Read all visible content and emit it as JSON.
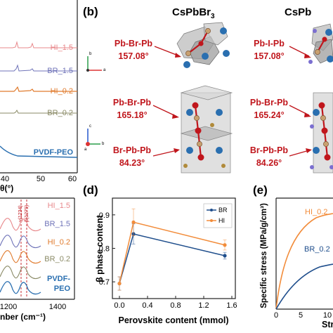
{
  "panel_labels": {
    "b": "(b)",
    "d": "(d)",
    "e": "(e)"
  },
  "panel_a": {
    "traces": [
      "HI_1.5",
      "BR_1.5",
      "HI_0.2",
      "BR_0.2",
      "PVDF-PEO"
    ],
    "trace_colors": [
      "#e8888b",
      "#6f73b8",
      "#e07a2c",
      "#8a8a66",
      "#2a6fb0"
    ],
    "x_ticks": [
      "40",
      "50",
      "60"
    ],
    "x_label_fragment": "θ(°)"
  },
  "panel_b": {
    "col_titles": [
      "CsPbBr",
      "CsPb"
    ],
    "title_subscript": "3",
    "axes_top": {
      "b": "b",
      "a": "a"
    },
    "axes_bottom": {
      "c": "c",
      "b": "b",
      "a": "a"
    },
    "annotations_left": [
      {
        "name": "Pb-Br-Pb",
        "value": "157.08°"
      },
      {
        "name": "Pb-Br-Pb",
        "value": "165.18°"
      },
      {
        "name": "Br-Pb-Pb",
        "value": "84.23°"
      }
    ],
    "annotations_right": [
      {
        "name": "Pb-I-Pb",
        "value": "157.08°"
      },
      {
        "name": "Pb-Br-Pb",
        "value": "165.24°"
      },
      {
        "name": "Br-Pb-Pb",
        "value": "84.26°"
      }
    ]
  },
  "panel_c": {
    "traces": [
      "HI_1.5",
      "BR_1.5",
      "HI_0.2",
      "BR_0.2",
      "PVDF-\nPEO"
    ],
    "trace_labels": [
      "HI_1.5",
      "BR_1.5",
      "HI_0.2",
      "BR_0.2"
    ],
    "last_label_line1": "PVDF-",
    "last_label_line2": "PEO",
    "trace_colors": [
      "#e8888b",
      "#6f73b8",
      "#e07a2c",
      "#8a8a66",
      "#2a6fb0"
    ],
    "peak_labels": [
      "γ(1234)",
      "β(1279)"
    ],
    "x_ticks": [
      "1200",
      "1400"
    ],
    "x_label_fragment": "nber (cm⁻¹)"
  },
  "chart_data": [
    {
      "type": "line",
      "panel": "d",
      "xlabel": "Perovskite content (mmol)",
      "ylabel": "β phase content",
      "xlim": [
        -0.1,
        1.65
      ],
      "ylim": [
        0.65,
        0.95
      ],
      "x_ticks": [
        "0.0",
        "0.4",
        "0.8",
        "1.2",
        "1.6"
      ],
      "y_ticks": [
        "0.7",
        "0.8",
        "0.9"
      ],
      "legend_position": "top-right",
      "series": [
        {
          "name": "BR",
          "color": "#1f4e8c",
          "x": [
            0,
            0.2,
            1.5
          ],
          "y": [
            0.695,
            0.843,
            0.778
          ],
          "err": [
            0.02,
            0.03,
            0.01
          ]
        },
        {
          "name": "HI",
          "color": "#f28c3a",
          "x": [
            0,
            0.2,
            1.5
          ],
          "y": [
            0.695,
            0.878,
            0.81
          ],
          "err": [
            0.02,
            0.04,
            0.015
          ]
        }
      ]
    },
    {
      "type": "line",
      "panel": "e",
      "ylabel": "Specific stress (MPa/g/cm³)",
      "xlabel_fragment": "Str",
      "x_ticks": [
        "0",
        "5",
        "10"
      ],
      "series_labels": [
        "HI_0.2",
        "BR_0.2"
      ],
      "series": [
        {
          "name": "HI_0.2",
          "color": "#f28c3a"
        },
        {
          "name": "BR_0.2",
          "color": "#1f4e8c"
        }
      ]
    }
  ]
}
